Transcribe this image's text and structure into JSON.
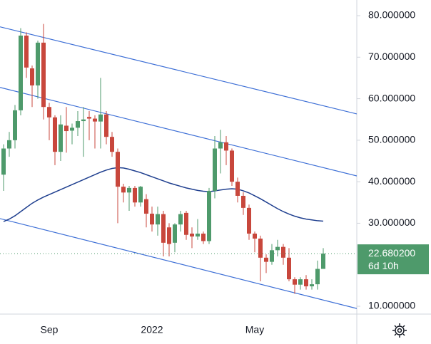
{
  "chart_data": {
    "type": "candlestick",
    "categories": [
      null,
      null,
      null,
      null,
      null,
      null,
      null,
      null,
      "Sep",
      null,
      null,
      null,
      null,
      null,
      null,
      null,
      null,
      null,
      null,
      null,
      null,
      null,
      null,
      null,
      null,
      null,
      "2022",
      null,
      null,
      null,
      null,
      null,
      null,
      null,
      null,
      null,
      null,
      null,
      null,
      null,
      null,
      null,
      null,
      null,
      "May",
      null,
      null,
      null,
      null,
      null,
      null,
      null,
      null,
      null,
      null,
      null,
      null
    ],
    "open": [
      41.7,
      48,
      50,
      57.2,
      75.2,
      67.3,
      63.2,
      73.5,
      58,
      55.5,
      47.2,
      53.5,
      52.3,
      53,
      54.6,
      55.6,
      55.2,
      54.5,
      56.2,
      50.8,
      47.2,
      38.8,
      37.4,
      38.5,
      35,
      35.8,
      32.3,
      29.7,
      32.2,
      29,
      25.3,
      29.7,
      32.5,
      27.5,
      26.8,
      27.5,
      25.7,
      37.8,
      48,
      49.5,
      47.5,
      40,
      36.6,
      33.7,
      27.5,
      26.3,
      21.7,
      20.7,
      23.5,
      24.3,
      21.7,
      16.5,
      15.2,
      16.5,
      14.8,
      15.3,
      19
    ],
    "high": [
      49,
      52,
      58.5,
      77,
      76,
      68,
      74,
      78,
      59,
      56,
      56,
      58,
      54,
      57,
      58,
      57,
      56,
      65,
      57,
      52,
      48,
      39.5,
      39,
      39,
      39,
      37,
      34,
      34,
      33,
      30,
      30,
      33,
      33,
      29,
      31,
      28,
      38.5,
      51,
      52.5,
      51,
      48,
      41,
      37.5,
      34.5,
      28,
      27,
      22.5,
      25,
      26,
      25,
      24,
      17,
      17,
      17.5,
      16.5,
      21,
      24
    ],
    "low": [
      37.8,
      46,
      48,
      56,
      65,
      58,
      60,
      55,
      50,
      44,
      45,
      47,
      49,
      51,
      46,
      50,
      48,
      48,
      49,
      46,
      30,
      35,
      33,
      34,
      34,
      29,
      28,
      27,
      22,
      22,
      23,
      28,
      26,
      24,
      26,
      25,
      25,
      36,
      42,
      44,
      39,
      35,
      32,
      26,
      23,
      16,
      18,
      20,
      22,
      20,
      16,
      13,
      14,
      14,
      14,
      14,
      19
    ],
    "close": [
      48,
      50,
      57.2,
      75.2,
      67.5,
      63.2,
      73.5,
      58,
      55.5,
      47.2,
      53.8,
      52.2,
      53,
      54.6,
      55,
      55.2,
      54.5,
      56.2,
      50.8,
      47.2,
      38.8,
      37.4,
      38.5,
      35,
      38.8,
      32.3,
      29.7,
      32.2,
      25.3,
      25,
      29.7,
      32.2,
      27.2,
      26.8,
      27.5,
      25.7,
      37.8,
      48,
      49.5,
      47.5,
      40,
      36.6,
      33.7,
      27.5,
      26.3,
      21.7,
      20.7,
      23.5,
      24.3,
      21.7,
      16.5,
      15.2,
      16.5,
      14.8,
      15.3,
      19,
      22.68
    ],
    "up_color": "#4e9a6b",
    "down_color": "#c8473c",
    "moving_average": {
      "color": "#1f3f8f",
      "values": [
        30.4,
        31,
        31.8,
        32.8,
        33.8,
        34.8,
        35.6,
        36.3,
        36.9,
        37.5,
        38.1,
        38.7,
        39.3,
        39.9,
        40.5,
        41.1,
        41.7,
        42.3,
        42.8,
        43.2,
        43.4,
        43.3,
        43,
        42.6,
        42.2,
        41.7,
        41.2,
        40.7,
        40.2,
        39.7,
        39.3,
        38.9,
        38.5,
        38.2,
        37.9,
        37.7,
        37.6,
        37.8,
        38,
        38.2,
        38.3,
        38.2,
        37.8,
        37.3,
        36.6,
        35.9,
        35.1,
        34.3,
        33.5,
        32.8,
        32.2,
        31.7,
        31.3,
        31,
        30.8,
        30.6,
        30.5
      ]
    },
    "trendlines": {
      "color": "#3d6fd6",
      "lines": [
        {
          "start": 77.1,
          "end": 58.3
        },
        {
          "start": 62.5,
          "end": 43.4
        },
        {
          "start": 30.9,
          "end": 11.5
        }
      ]
    },
    "last_price": {
      "value": 22.6802,
      "label": "22.680200"
    },
    "countdown": "6d 10h",
    "label_color": "#4e9a6b",
    "ylim": [
      10,
      80
    ],
    "yticks": [
      {
        "value": 10,
        "label": "10.000000"
      },
      {
        "value": 30,
        "label": "30.000000"
      },
      {
        "value": 40,
        "label": "40.000000"
      },
      {
        "value": 50,
        "label": "50.000000"
      },
      {
        "value": 60,
        "label": "60.000000"
      },
      {
        "value": 70,
        "label": "70.000000"
      },
      {
        "value": 80,
        "label": "80.000000"
      }
    ]
  }
}
